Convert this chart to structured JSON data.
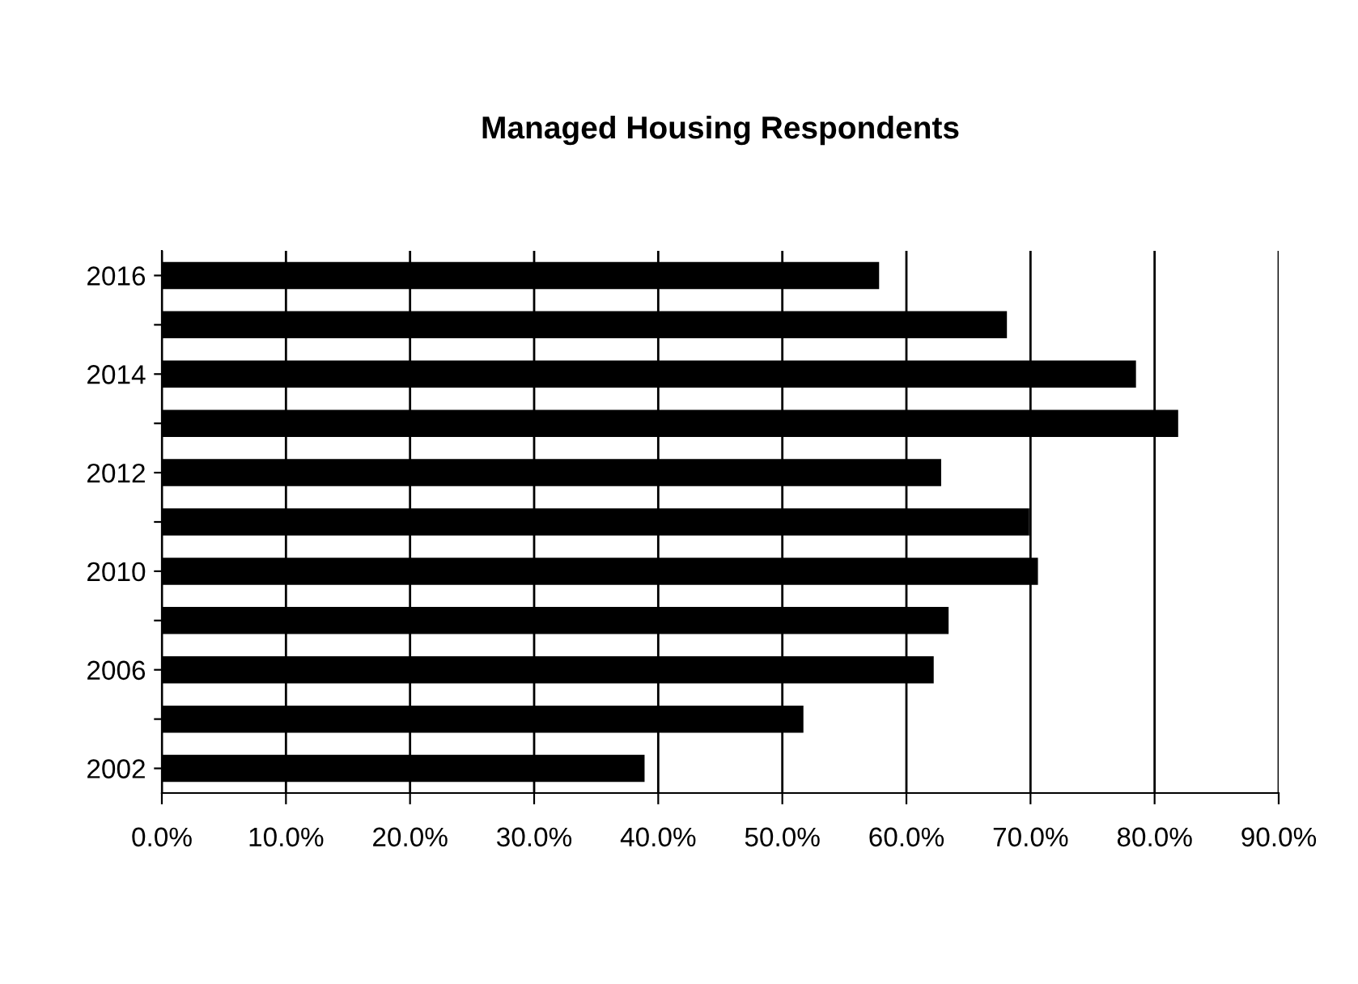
{
  "chart_data": {
    "type": "bar",
    "orientation": "horizontal",
    "title": "Managed Housing Respondents",
    "categories": [
      "2016",
      null,
      "2014",
      null,
      "2012",
      null,
      "2010",
      null,
      "2006",
      null,
      "2002"
    ],
    "values": [
      57.8,
      68.1,
      78.5,
      81.9,
      62.8,
      69.9,
      70.6,
      63.4,
      62.2,
      51.7,
      38.9
    ],
    "color": "#000000",
    "xlim": [
      0,
      90
    ],
    "xticks": [
      {
        "value": 0,
        "label": "0.0%"
      },
      {
        "value": 10,
        "label": "10.0%"
      },
      {
        "value": 20,
        "label": "20.0%"
      },
      {
        "value": 30,
        "label": "30.0%"
      },
      {
        "value": 40,
        "label": "40.0%"
      },
      {
        "value": 50,
        "label": "50.0%"
      },
      {
        "value": 60,
        "label": "60.0%"
      },
      {
        "value": 70,
        "label": "70.0%"
      },
      {
        "value": 80,
        "label": "80.0%"
      },
      {
        "value": 90,
        "label": "90.0%"
      }
    ],
    "grid": "x",
    "legend": false
  }
}
